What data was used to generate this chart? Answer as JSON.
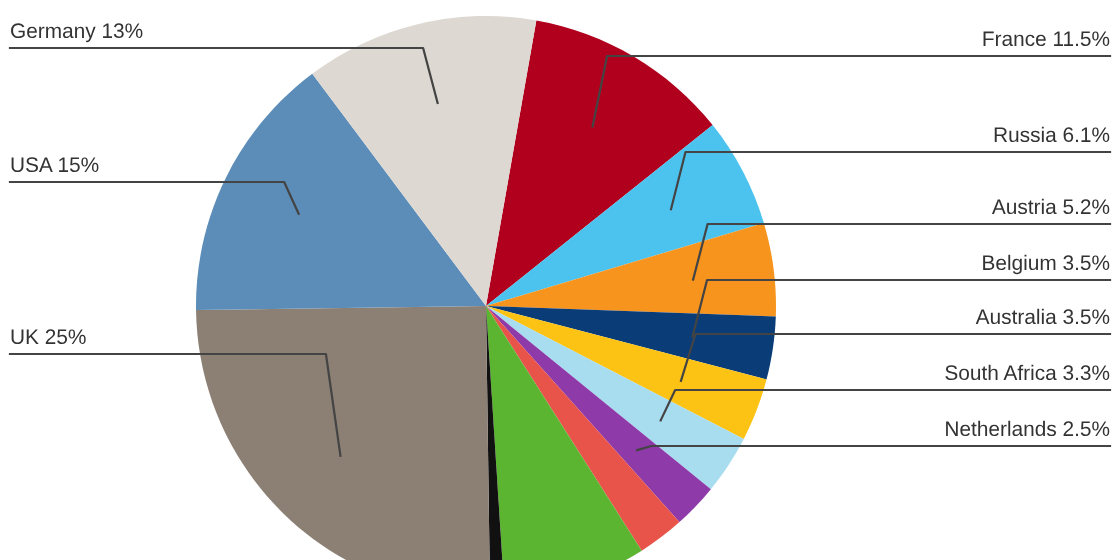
{
  "chart_data": {
    "type": "pie",
    "categories": [
      "France",
      "Russia",
      "Austria",
      "Belgium",
      "Australia",
      "South Africa",
      "Netherlands",
      null,
      null,
      null,
      "UK",
      "USA",
      "Germany"
    ],
    "values": [
      11.5,
      6.1,
      5.2,
      3.5,
      3.5,
      3.3,
      2.5,
      2.6,
      8.0,
      0.8,
      25,
      15,
      13
    ],
    "value_labels": [
      "11.5%",
      "6.1%",
      "5.2%",
      "3.5%",
      "3.5%",
      "3.3%",
      "2.5%",
      null,
      null,
      null,
      "25%",
      "15%",
      "13%"
    ],
    "colors": [
      "#b0001e",
      "#4cc3ee",
      "#f7941d",
      "#0a3d78",
      "#fcc314",
      "#a8dcef",
      "#8e3aa8",
      "#e8534a",
      "#5cb531",
      "#111111",
      "#8c8075",
      "#5b8db8",
      "#ddd8d2"
    ]
  }
}
